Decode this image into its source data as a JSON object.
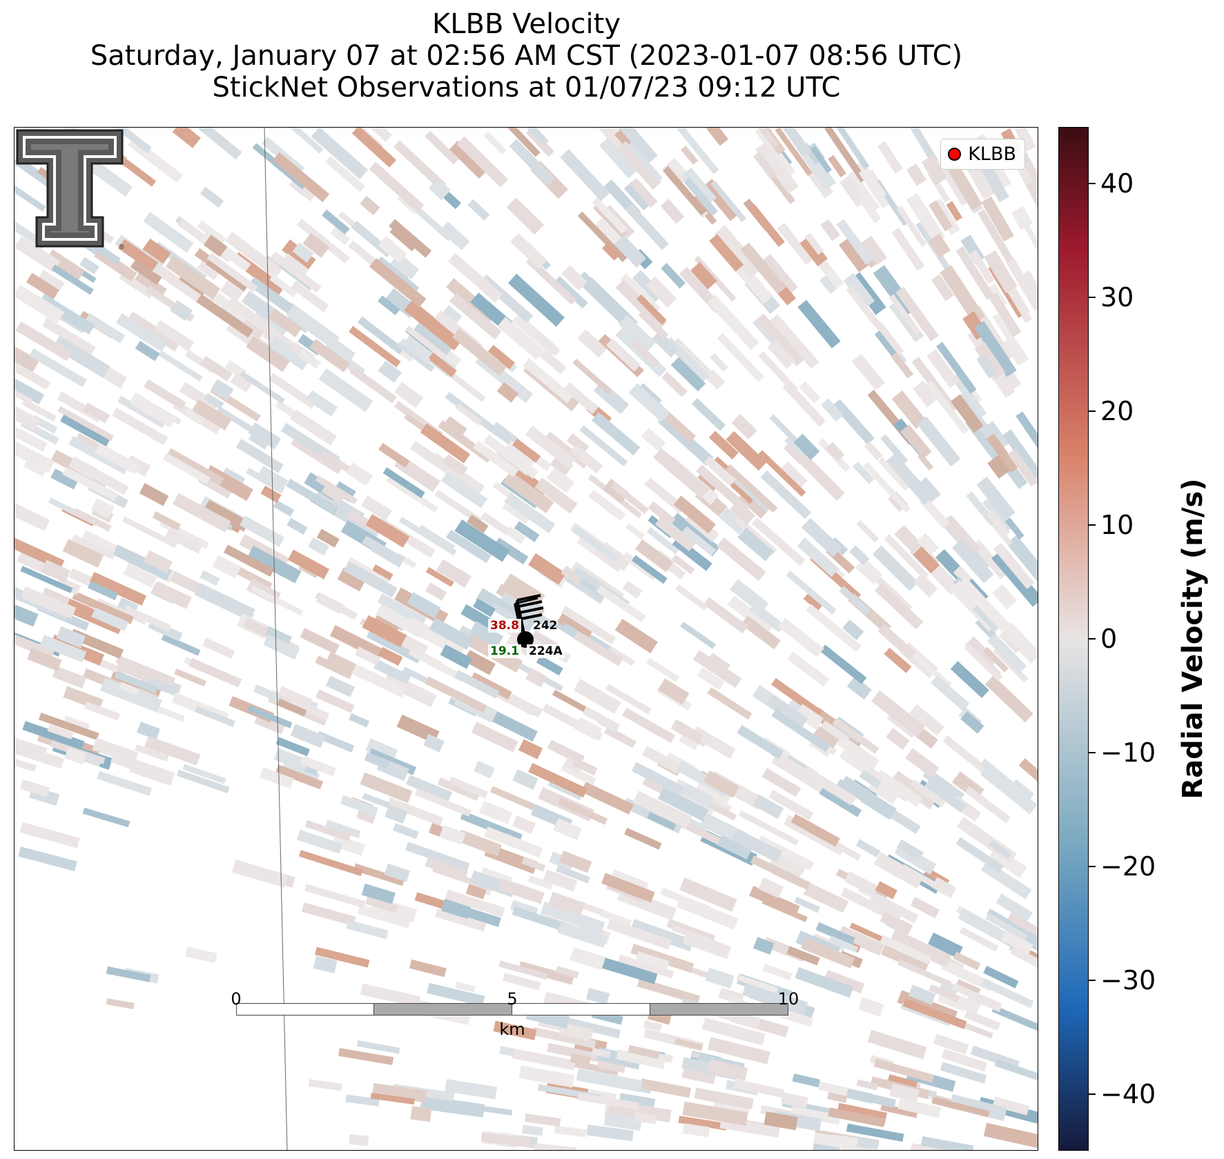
{
  "title": {
    "line1": "KLBB Velocity",
    "line2": "Saturday, January 07 at 02:56 AM CST (2023-01-07 08:56 UTC)",
    "line3": "StickNet Observations at 01/07/23 09:12 UTC"
  },
  "legend": {
    "label": "KLBB",
    "marker_color": "#ff0000"
  },
  "stations": [
    {
      "id": "242",
      "value": "38.8",
      "value_color": "#b30000"
    },
    {
      "id": "224A",
      "value": "19.1",
      "value_color": "#006400"
    }
  ],
  "scalebar": {
    "ticks": [
      "0",
      "5",
      "10"
    ],
    "unit": "km"
  },
  "colorbar": {
    "title": "Radial Velocity (m/s)",
    "ticks": [
      "40",
      "30",
      "20",
      "10",
      "0",
      "−10",
      "−20",
      "−30",
      "−40"
    ],
    "range": [
      -45,
      45
    ],
    "colors": {
      "max": "#3a0d12",
      "high": "#9e1a2e",
      "mid_high": "#d9826a",
      "near_zero": "#e8e4e4",
      "mid_low": "#7aa9c0",
      "low": "#1e68b8",
      "min": "#151a3a"
    }
  },
  "logo": {
    "name": "texas-tech-double-t-logo"
  }
}
